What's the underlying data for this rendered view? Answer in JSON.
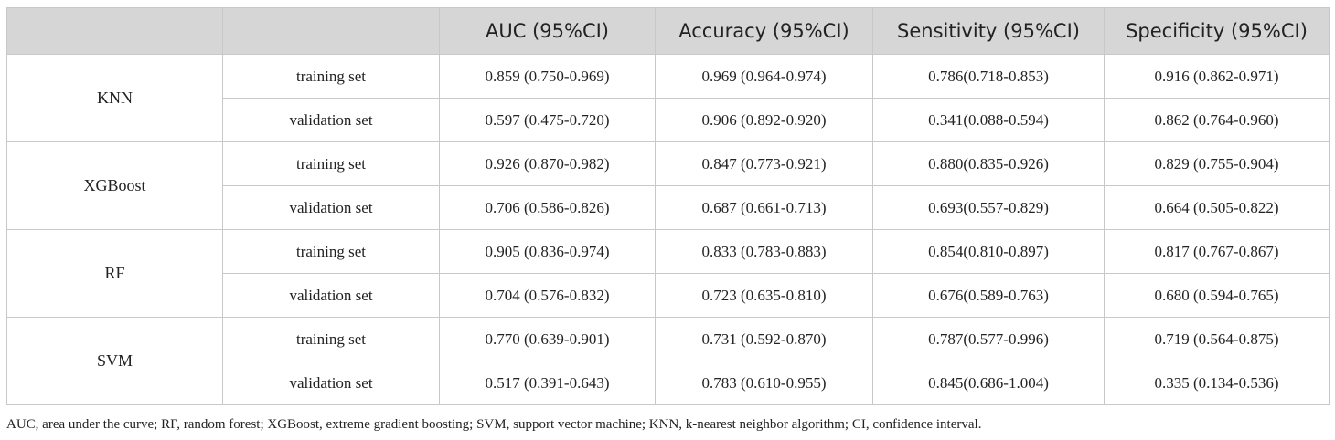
{
  "table": {
    "headers": [
      "",
      "",
      "AUC (95%CI)",
      "Accuracy (95%CI)",
      "Sensitivity (95%CI)",
      "Specificity (95%CI)"
    ],
    "groups": [
      {
        "model": "KNN",
        "rows": [
          {
            "set": "training set",
            "auc": "0.859 (0.750-0.969)",
            "accuracy": "0.969 (0.964-0.974)",
            "sensitivity": "0.786(0.718-0.853)",
            "specificity": "0.916 (0.862-0.971)"
          },
          {
            "set": "validation set",
            "auc": "0.597 (0.475-0.720)",
            "accuracy": "0.906 (0.892-0.920)",
            "sensitivity": "0.341(0.088-0.594)",
            "specificity": "0.862 (0.764-0.960)"
          }
        ]
      },
      {
        "model": "XGBoost",
        "rows": [
          {
            "set": "training set",
            "auc": "0.926 (0.870-0.982)",
            "accuracy": "0.847 (0.773-0.921)",
            "sensitivity": "0.880(0.835-0.926)",
            "specificity": "0.829 (0.755-0.904)"
          },
          {
            "set": "validation set",
            "auc": "0.706 (0.586-0.826)",
            "accuracy": "0.687 (0.661-0.713)",
            "sensitivity": "0.693(0.557-0.829)",
            "specificity": "0.664 (0.505-0.822)"
          }
        ]
      },
      {
        "model": "RF",
        "rows": [
          {
            "set": "training set",
            "auc": "0.905 (0.836-0.974)",
            "accuracy": "0.833 (0.783-0.883)",
            "sensitivity": "0.854(0.810-0.897)",
            "specificity": "0.817 (0.767-0.867)"
          },
          {
            "set": "validation set",
            "auc": "0.704 (0.576-0.832)",
            "accuracy": "0.723 (0.635-0.810)",
            "sensitivity": "0.676(0.589-0.763)",
            "specificity": "0.680 (0.594-0.765)"
          }
        ]
      },
      {
        "model": "SVM",
        "rows": [
          {
            "set": "training set",
            "auc": "0.770 (0.639-0.901)",
            "accuracy": "0.731 (0.592-0.870)",
            "sensitivity": "0.787(0.577-0.996)",
            "specificity": "0.719 (0.564-0.875)"
          },
          {
            "set": "validation set",
            "auc": "0.517 (0.391-0.643)",
            "accuracy": "0.783 (0.610-0.955)",
            "sensitivity": "0.845(0.686-1.004)",
            "specificity": "0.335 (0.134-0.536)"
          }
        ]
      }
    ]
  },
  "footnote": "AUC, area under the curve; RF, random forest; XGBoost, extreme gradient boosting; SVM, support vector machine; KNN, k-nearest neighbor algorithm; CI, confidence interval.",
  "colors": {
    "header_bg": "#d6d6d6",
    "border": "#c8c8c8",
    "text": "#222222"
  }
}
